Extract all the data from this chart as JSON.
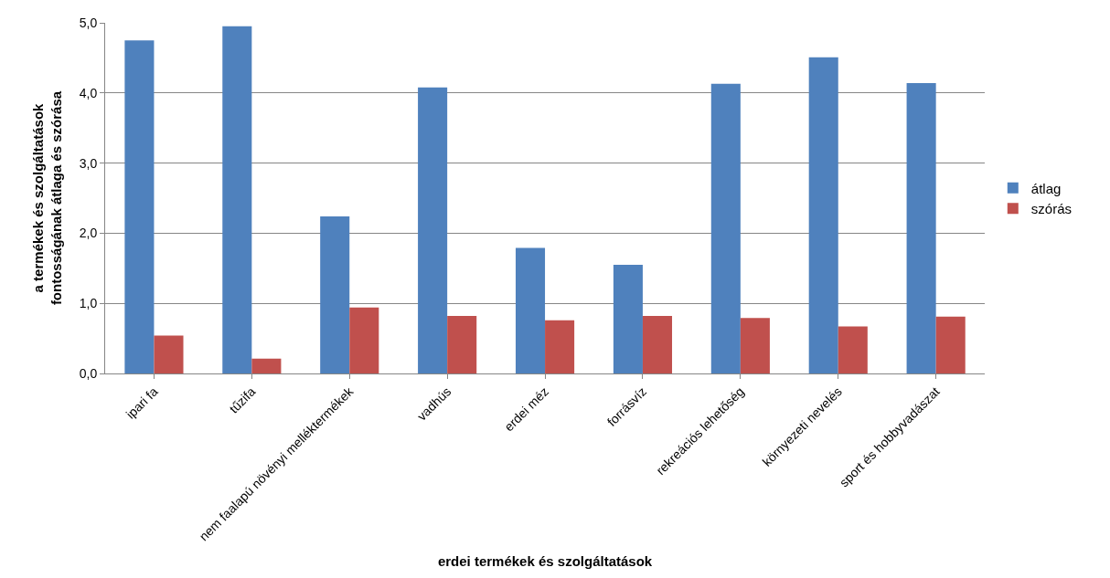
{
  "chart_data": {
    "type": "bar",
    "xlabel": "erdei termékek és szolgáltatások",
    "ylabel": "a termékek és szolgáltatások fontosságának átlaga és szórása",
    "categories": [
      "ipari fa",
      "tűzifa",
      "nem faalapú növényi melléktermékek",
      "vadhús",
      "erdei méz",
      "forrásvíz",
      "rekreációs lehetőség",
      "környezeti nevelés",
      "sport és hobbyvadászat"
    ],
    "series": [
      {
        "name": "átlag",
        "color": "#4f81bd",
        "values": [
          4.75,
          4.95,
          2.24,
          4.08,
          1.79,
          1.55,
          4.13,
          4.51,
          4.14
        ]
      },
      {
        "name": "szórás",
        "color": "#c0504d",
        "values": [
          0.54,
          0.21,
          0.94,
          0.82,
          0.76,
          0.82,
          0.79,
          0.67,
          0.81
        ]
      }
    ],
    "ylim": [
      0,
      5
    ],
    "yticks": [
      {
        "value": 0,
        "label": "0,0"
      },
      {
        "value": 1,
        "label": "1,0"
      },
      {
        "value": 2,
        "label": "2,0"
      },
      {
        "value": 3,
        "label": "3,0"
      },
      {
        "value": 4,
        "label": "4,0"
      },
      {
        "value": 5,
        "label": "5,0"
      }
    ],
    "grid": "y",
    "legend": "right"
  }
}
